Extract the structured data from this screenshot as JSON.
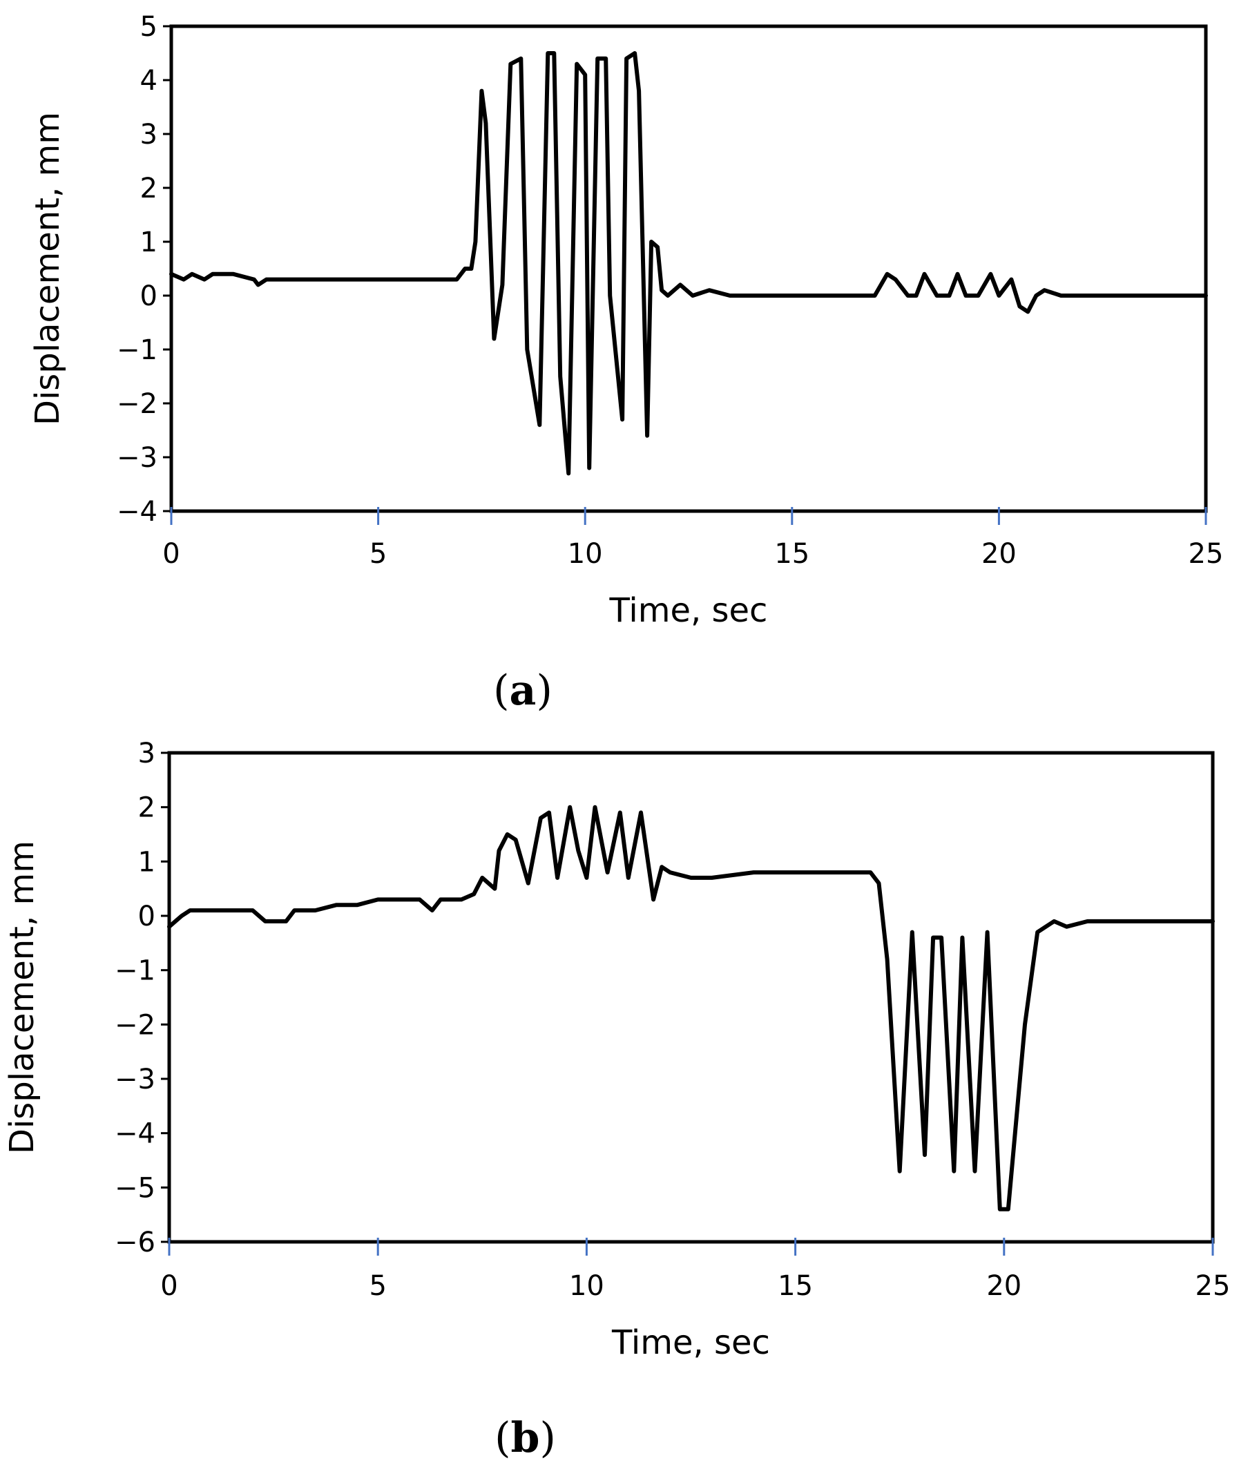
{
  "chart_data": [
    {
      "type": "line",
      "panel_label": "a",
      "xlabel": "Time, sec",
      "ylabel": "Displacement, mm",
      "xlim": [
        0,
        25
      ],
      "ylim": [
        -4,
        5
      ],
      "xticks": [
        0,
        5,
        10,
        15,
        20,
        25
      ],
      "yticks": [
        5,
        4,
        3,
        2,
        1,
        0,
        -1,
        -2,
        -3,
        -4
      ],
      "ytick_labels": [
        "5",
        "4",
        "3",
        "2",
        "1",
        "0",
        "−1",
        "−2",
        "−3",
        "−4"
      ],
      "series": [
        {
          "name": "Displacement",
          "color": "#000000",
          "x": [
            0,
            0.3,
            0.5,
            0.8,
            1.0,
            1.5,
            2.0,
            2.1,
            2.3,
            3.0,
            4.0,
            5.0,
            6.0,
            6.9,
            7.1,
            7.25,
            7.35,
            7.5,
            7.6,
            7.8,
            8.0,
            8.2,
            8.45,
            8.6,
            8.9,
            9.1,
            9.25,
            9.4,
            9.6,
            9.8,
            10.0,
            10.1,
            10.3,
            10.5,
            10.6,
            10.9,
            11.0,
            11.2,
            11.3,
            11.5,
            11.6,
            11.75,
            11.85,
            12.0,
            12.3,
            12.6,
            13.0,
            13.5,
            14.0,
            15.0,
            16.0,
            17.0,
            17.3,
            17.5,
            17.8,
            18.0,
            18.2,
            18.5,
            18.8,
            19.0,
            19.2,
            19.5,
            19.8,
            20.0,
            20.3,
            20.5,
            20.7,
            20.9,
            21.1,
            21.5,
            22.0,
            25.0
          ],
          "y": [
            0.4,
            0.3,
            0.4,
            0.3,
            0.4,
            0.4,
            0.3,
            0.2,
            0.3,
            0.3,
            0.3,
            0.3,
            0.3,
            0.3,
            0.5,
            0.5,
            1.0,
            3.8,
            3.2,
            -0.8,
            0.2,
            4.3,
            4.4,
            -1.0,
            -2.4,
            4.5,
            4.5,
            -1.5,
            -3.3,
            4.3,
            4.1,
            -3.2,
            4.4,
            4.4,
            0.0,
            -2.3,
            4.4,
            4.5,
            3.8,
            -2.6,
            1.0,
            0.9,
            0.1,
            0.0,
            0.2,
            0.0,
            0.1,
            0.0,
            0.0,
            0.0,
            0.0,
            0.0,
            0.4,
            0.3,
            0.0,
            0.0,
            0.4,
            0.0,
            0.0,
            0.4,
            0.0,
            0.0,
            0.4,
            0.0,
            0.3,
            -0.2,
            -0.3,
            0.0,
            0.1,
            0.0,
            0.0,
            0.0
          ]
        }
      ]
    },
    {
      "type": "line",
      "panel_label": "b",
      "xlabel": "Time, sec",
      "ylabel": "Displacement, mm",
      "xlim": [
        0,
        25
      ],
      "ylim": [
        -6,
        3
      ],
      "xticks": [
        0,
        5,
        10,
        15,
        20,
        25
      ],
      "yticks": [
        3,
        2,
        1,
        0,
        -1,
        -2,
        -3,
        -4,
        -5,
        -6
      ],
      "ytick_labels": [
        "3",
        "2",
        "1",
        "0",
        "−1",
        "−2",
        "−3",
        "−4",
        "−5",
        "−6"
      ],
      "series": [
        {
          "name": "Displacement",
          "color": "#000000",
          "x": [
            0,
            0.3,
            0.5,
            1.0,
            1.5,
            2.0,
            2.3,
            2.5,
            2.8,
            3.0,
            3.5,
            4.0,
            4.5,
            5.0,
            5.5,
            6.0,
            6.3,
            6.5,
            7.0,
            7.3,
            7.5,
            7.8,
            7.9,
            8.1,
            8.3,
            8.6,
            8.9,
            9.1,
            9.3,
            9.6,
            9.8,
            10.0,
            10.2,
            10.5,
            10.8,
            11.0,
            11.3,
            11.6,
            11.8,
            12.0,
            12.5,
            13.0,
            14.0,
            15.0,
            16.0,
            16.8,
            17.0,
            17.2,
            17.5,
            17.8,
            18.1,
            18.3,
            18.5,
            18.8,
            19.0,
            19.3,
            19.6,
            19.9,
            20.1,
            20.5,
            20.8,
            21.0,
            21.2,
            21.5,
            22.0,
            23.0,
            24.0,
            25.0
          ],
          "y": [
            -0.2,
            0.0,
            0.1,
            0.1,
            0.1,
            0.1,
            -0.1,
            -0.1,
            -0.1,
            0.1,
            0.1,
            0.2,
            0.2,
            0.3,
            0.3,
            0.3,
            0.1,
            0.3,
            0.3,
            0.4,
            0.7,
            0.5,
            1.2,
            1.5,
            1.4,
            0.6,
            1.8,
            1.9,
            0.7,
            2.0,
            1.2,
            0.7,
            2.0,
            0.8,
            1.9,
            0.7,
            1.9,
            0.3,
            0.9,
            0.8,
            0.7,
            0.7,
            0.8,
            0.8,
            0.8,
            0.8,
            0.6,
            -0.8,
            -4.7,
            -0.3,
            -4.4,
            -0.4,
            -0.4,
            -4.7,
            -0.4,
            -4.7,
            -0.3,
            -5.4,
            -5.4,
            -2.0,
            -0.3,
            -0.2,
            -0.1,
            -0.2,
            -0.1,
            -0.1,
            -0.1,
            -0.1
          ]
        }
      ]
    }
  ]
}
